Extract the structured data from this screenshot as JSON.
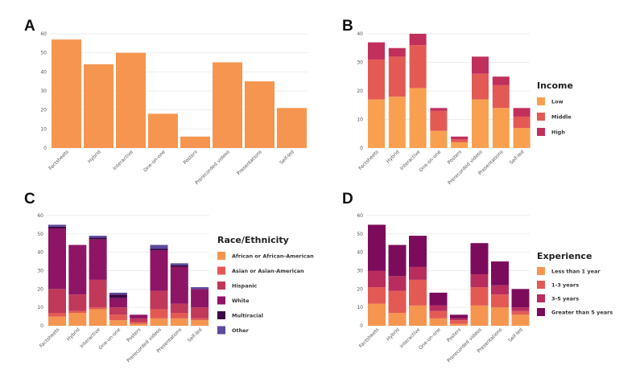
{
  "colors": {
    "single": "#f59550",
    "income": [
      "#f8a050",
      "#e35a55",
      "#c12f5c"
    ],
    "race": [
      "#f59550",
      "#e35a55",
      "#c0385a",
      "#8e1566",
      "#3c0847",
      "#5c4a9c"
    ],
    "experience": [
      "#f59550",
      "#e35a55",
      "#b82d5e",
      "#7c0c5b"
    ]
  },
  "chart_data": [
    {
      "panel": "A",
      "type": "bar",
      "categories": [
        "Factsheets",
        "Hybrid",
        "Interactive",
        "One-on-one",
        "Posters",
        "Prerecorded videos",
        "Presentations",
        "Self-led"
      ],
      "values": [
        57,
        44,
        50,
        18,
        6,
        45,
        35,
        21
      ],
      "ylim": [
        0,
        60
      ],
      "yticks": [
        "0",
        "10",
        "20",
        "30",
        "40",
        "50",
        "60"
      ],
      "legend": null
    },
    {
      "panel": "B",
      "type": "bar",
      "stacked": true,
      "categories": [
        "Factsheets",
        "Hybrid",
        "Interactive",
        "One-on-one",
        "Posters",
        "Prerecorded videos",
        "Presentations",
        "Self-led"
      ],
      "series": [
        {
          "name": "Low",
          "values": [
            17,
            18,
            21,
            6,
            2,
            17,
            14,
            7
          ]
        },
        {
          "name": "Middle",
          "values": [
            14,
            14,
            15,
            7,
            1,
            9,
            8,
            4
          ]
        },
        {
          "name": "High",
          "values": [
            6,
            3,
            4,
            1,
            1,
            6,
            3,
            3
          ]
        }
      ],
      "ylim": [
        0,
        40
      ],
      "yticks": [
        "0",
        "10",
        "20",
        "30",
        "40"
      ],
      "legend": {
        "title": "Income",
        "position": "right"
      }
    },
    {
      "panel": "C",
      "type": "bar",
      "stacked": true,
      "categories": [
        "Factsheets",
        "Hybrid",
        "Interactive",
        "One-on-one",
        "Posters",
        "Prerecorded videos",
        "Presentations",
        "Self-led"
      ],
      "series": [
        {
          "name": "African or African-American",
          "values": [
            5,
            7,
            9,
            3,
            1,
            4,
            4,
            3
          ]
        },
        {
          "name": "Asian or Asian-American",
          "values": [
            2,
            1,
            1,
            3,
            1,
            5,
            3,
            1
          ]
        },
        {
          "name": "Hispanic",
          "values": [
            13,
            9,
            15,
            4,
            2,
            10,
            5,
            6
          ]
        },
        {
          "name": "White",
          "values": [
            33,
            27,
            22,
            5,
            2,
            22,
            20,
            10
          ]
        },
        {
          "name": "Multiracial",
          "values": [
            1,
            0,
            1,
            2,
            0,
            1,
            1,
            0
          ]
        },
        {
          "name": "Other",
          "values": [
            1,
            0,
            1,
            1,
            0,
            2,
            1,
            1
          ]
        }
      ],
      "ylim": [
        0,
        60
      ],
      "yticks": [
        "0",
        "10",
        "20",
        "30",
        "40",
        "50",
        "60"
      ],
      "legend": {
        "title": "Race/Ethnicity",
        "position": "right"
      }
    },
    {
      "panel": "D",
      "type": "bar",
      "stacked": true,
      "categories": [
        "Factsheets",
        "Hybrid",
        "Interactive",
        "One-on-one",
        "Posters",
        "Prerecorded videos",
        "Presentations",
        "Self-led"
      ],
      "series": [
        {
          "name": "Less than 1 year",
          "values": [
            12,
            7,
            11,
            4,
            1,
            11,
            10,
            6
          ]
        },
        {
          "name": "1-3 years",
          "values": [
            9,
            12,
            14,
            4,
            2,
            10,
            7,
            2
          ]
        },
        {
          "name": "3-5 years",
          "values": [
            9,
            8,
            7,
            3,
            1,
            7,
            5,
            2
          ]
        },
        {
          "name": "Greater than 5 years",
          "values": [
            25,
            17,
            17,
            7,
            2,
            17,
            13,
            10
          ]
        }
      ],
      "ylim": [
        0,
        60
      ],
      "yticks": [
        "0",
        "10",
        "20",
        "30",
        "40",
        "50",
        "60"
      ],
      "legend": {
        "title": "Experience",
        "position": "right"
      }
    }
  ]
}
